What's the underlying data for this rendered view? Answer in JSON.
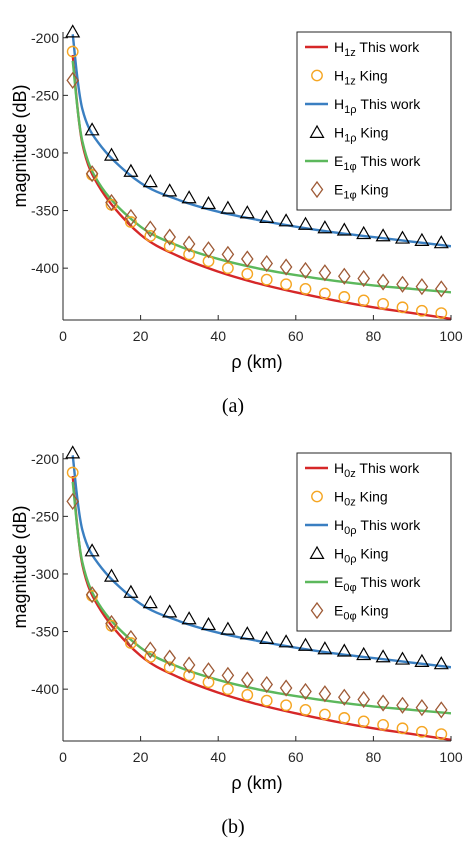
{
  "chart_data": [
    {
      "type": "line",
      "caption": "(a)",
      "xlabel": "ρ (km)",
      "ylabel": "magnitude (dB)",
      "xlim": [
        0,
        100
      ],
      "ylim": [
        -445,
        -195
      ],
      "xticks": [
        "0",
        "20",
        "40",
        "60",
        "80",
        "100"
      ],
      "yticks": [
        "-200",
        "-250",
        "-300",
        "-350",
        "-400"
      ],
      "legend_position": "top-right",
      "series": [
        {
          "name": "H1z This work",
          "label_main": "H",
          "label_sub": "1z",
          "label_rest": " This work",
          "kind": "line",
          "color": "#d62728",
          "x": [
            2.5,
            5,
            10,
            20,
            30,
            40,
            50,
            60,
            70,
            80,
            90,
            100
          ],
          "y": [
            -215,
            -292,
            -333,
            -371,
            -390,
            -403,
            -413,
            -421,
            -428,
            -434,
            -439,
            -444
          ]
        },
        {
          "name": "H1z King",
          "label_main": "H",
          "label_sub": "1z",
          "label_rest": " King",
          "kind": "marker",
          "marker": "circle",
          "color": "#f5a623",
          "x": [
            2.5,
            7.5,
            12.5,
            17.5,
            22.5,
            27.5,
            32.5,
            37.5,
            42.5,
            47.5,
            52.5,
            57.5,
            62.5,
            67.5,
            72.5,
            77.5,
            82.5,
            87.5,
            92.5,
            97.5
          ],
          "y": [
            -212,
            -319,
            -345,
            -360,
            -372,
            -381,
            -388,
            -394,
            -400,
            -405,
            -410,
            -414,
            -418,
            -422,
            -425,
            -428,
            -431,
            -434,
            -437,
            -439
          ]
        },
        {
          "name": "H1ρ This work",
          "label_main": "H",
          "label_sub": "1ρ",
          "label_rest": " This work",
          "kind": "line",
          "color": "#3a7fc1",
          "x": [
            2.5,
            5,
            10,
            20,
            30,
            40,
            50,
            60,
            70,
            80,
            90,
            100
          ],
          "y": [
            -197,
            -262,
            -295,
            -326,
            -341,
            -351,
            -358,
            -364,
            -369,
            -373,
            -377,
            -381
          ]
        },
        {
          "name": "H1ρ King",
          "label_main": "H",
          "label_sub": "1ρ",
          "label_rest": " King",
          "kind": "marker",
          "marker": "triangle",
          "color": "#000000",
          "x": [
            2.5,
            7.5,
            12.5,
            17.5,
            22.5,
            27.5,
            32.5,
            37.5,
            42.5,
            47.5,
            52.5,
            57.5,
            62.5,
            67.5,
            72.5,
            77.5,
            82.5,
            87.5,
            92.5,
            97.5
          ],
          "y": [
            -195,
            -280,
            -302,
            -316,
            -325,
            -333,
            -339,
            -344,
            -348,
            -352,
            -356,
            -359,
            -362,
            -365,
            -367,
            -370,
            -372,
            -374,
            -376,
            -378
          ]
        },
        {
          "name": "E1φ This work",
          "label_main": "E",
          "label_sub": "1φ",
          "label_rest": " This work",
          "kind": "line",
          "color": "#5cb85c",
          "x": [
            2.5,
            5,
            10,
            20,
            30,
            40,
            50,
            60,
            70,
            80,
            90,
            100
          ],
          "y": [
            -220,
            -290,
            -330,
            -364,
            -381,
            -392,
            -400,
            -406,
            -411,
            -415,
            -418,
            -421
          ]
        },
        {
          "name": "E1φ King",
          "label_main": "E",
          "label_sub": "1φ",
          "label_rest": " King",
          "kind": "marker",
          "marker": "diamond",
          "color": "#9e5a36",
          "x": [
            2.5,
            7.5,
            12.5,
            17.5,
            22.5,
            27.5,
            32.5,
            37.5,
            42.5,
            47.5,
            52.5,
            57.5,
            62.5,
            67.5,
            72.5,
            77.5,
            82.5,
            87.5,
            92.5,
            97.5
          ],
          "y": [
            -237,
            -318,
            -343,
            -356,
            -366,
            -373,
            -379,
            -384,
            -388,
            -392,
            -396,
            -399,
            -402,
            -404,
            -407,
            -409,
            -412,
            -414,
            -416,
            -418
          ]
        }
      ]
    },
    {
      "type": "line",
      "caption": "(b)",
      "xlabel": "ρ (km)",
      "ylabel": "magnitude (dB)",
      "xlim": [
        0,
        100
      ],
      "ylim": [
        -445,
        -195
      ],
      "xticks": [
        "0",
        "20",
        "40",
        "60",
        "80",
        "100"
      ],
      "yticks": [
        "-200",
        "-250",
        "-300",
        "-350",
        "-400"
      ],
      "legend_position": "top-right",
      "series": [
        {
          "name": "H0z This work",
          "label_main": "H",
          "label_sub": "0z",
          "label_rest": " This work",
          "kind": "line",
          "color": "#d62728",
          "x": [
            2.5,
            5,
            10,
            20,
            30,
            40,
            50,
            60,
            70,
            80,
            90,
            100
          ],
          "y": [
            -215,
            -292,
            -333,
            -371,
            -390,
            -403,
            -413,
            -421,
            -428,
            -434,
            -439,
            -444
          ]
        },
        {
          "name": "H0z King",
          "label_main": "H",
          "label_sub": "0z",
          "label_rest": " King",
          "kind": "marker",
          "marker": "circle",
          "color": "#f5a623",
          "x": [
            2.5,
            7.5,
            12.5,
            17.5,
            22.5,
            27.5,
            32.5,
            37.5,
            42.5,
            47.5,
            52.5,
            57.5,
            62.5,
            67.5,
            72.5,
            77.5,
            82.5,
            87.5,
            92.5,
            97.5
          ],
          "y": [
            -212,
            -319,
            -345,
            -360,
            -372,
            -381,
            -388,
            -394,
            -400,
            -405,
            -410,
            -414,
            -418,
            -422,
            -425,
            -428,
            -431,
            -434,
            -437,
            -439
          ]
        },
        {
          "name": "H0ρ This work",
          "label_main": "H",
          "label_sub": "0ρ",
          "label_rest": " This work",
          "kind": "line",
          "color": "#3a7fc1",
          "x": [
            2.5,
            5,
            10,
            20,
            30,
            40,
            50,
            60,
            70,
            80,
            90,
            100
          ],
          "y": [
            -197,
            -262,
            -295,
            -326,
            -341,
            -351,
            -358,
            -364,
            -369,
            -373,
            -377,
            -381
          ]
        },
        {
          "name": "H0ρ King",
          "label_main": "H",
          "label_sub": "0ρ",
          "label_rest": " King",
          "kind": "marker",
          "marker": "triangle",
          "color": "#000000",
          "x": [
            2.5,
            7.5,
            12.5,
            17.5,
            22.5,
            27.5,
            32.5,
            37.5,
            42.5,
            47.5,
            52.5,
            57.5,
            62.5,
            67.5,
            72.5,
            77.5,
            82.5,
            87.5,
            92.5,
            97.5
          ],
          "y": [
            -195,
            -280,
            -302,
            -316,
            -325,
            -333,
            -339,
            -344,
            -348,
            -352,
            -356,
            -359,
            -362,
            -365,
            -367,
            -370,
            -372,
            -374,
            -376,
            -378
          ]
        },
        {
          "name": "E0φ This work",
          "label_main": "E",
          "label_sub": "0φ",
          "label_rest": " This work",
          "kind": "line",
          "color": "#5cb85c",
          "x": [
            2.5,
            5,
            10,
            20,
            30,
            40,
            50,
            60,
            70,
            80,
            90,
            100
          ],
          "y": [
            -220,
            -290,
            -330,
            -364,
            -381,
            -392,
            -400,
            -406,
            -411,
            -415,
            -418,
            -421
          ]
        },
        {
          "name": "E0φ King",
          "label_main": "E",
          "label_sub": "0φ",
          "label_rest": " King",
          "kind": "marker",
          "marker": "diamond",
          "color": "#9e5a36",
          "x": [
            2.5,
            7.5,
            12.5,
            17.5,
            22.5,
            27.5,
            32.5,
            37.5,
            42.5,
            47.5,
            52.5,
            57.5,
            62.5,
            67.5,
            72.5,
            77.5,
            82.5,
            87.5,
            92.5,
            97.5
          ],
          "y": [
            -237,
            -318,
            -343,
            -356,
            -366,
            -373,
            -379,
            -384,
            -388,
            -392,
            -396,
            -399,
            -402,
            -404,
            -407,
            -409,
            -412,
            -414,
            -416,
            -418
          ]
        }
      ]
    }
  ]
}
